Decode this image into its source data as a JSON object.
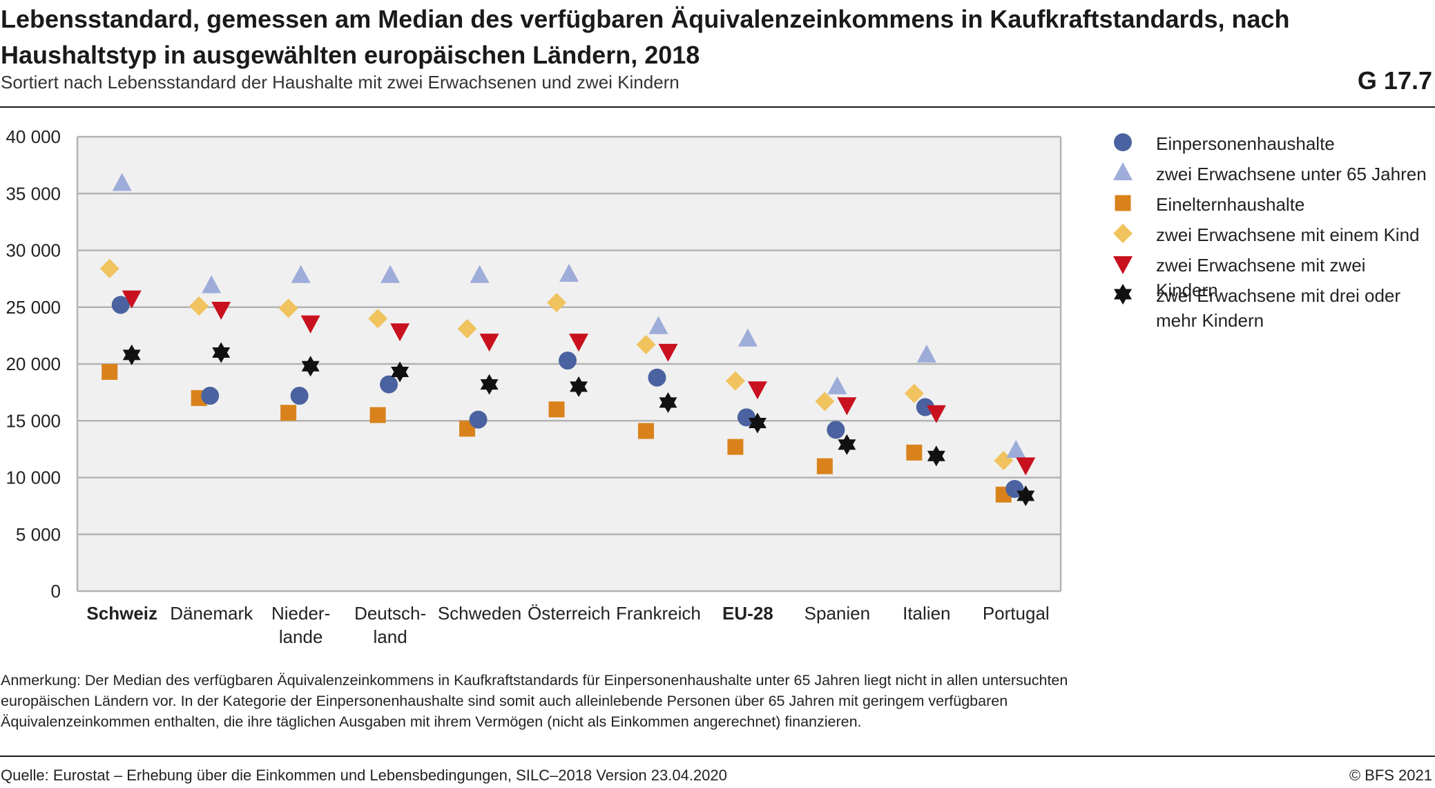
{
  "header": {
    "title": "Lebensstandard, gemessen am Median des verfügbaren Äquivalenzeinkommens in Kaufkraftstandards, nach Haushaltstyp in ausgewählten europäischen Ländern, 2018",
    "subtitle": "Sortiert nach Lebensstandard der Haushalte mit zwei Erwachsenen und zwei Kindern",
    "figure_number": "G 17.7"
  },
  "footer": {
    "note": "Anmerkung: Der Median des verfügbaren Äquivalenzeinkommens in Kaufkraftstandards für Einpersonenhaushalte unter 65 Jahren liegt nicht in allen untersuchten europäischen Ländern vor. In der Kategorie der Einpersonenhaushalte sind somit auch alleinlebende Personen über 65 Jahren mit geringem verfügbaren Äquivalenzeinkommen enthalten, die ihre täglichen Ausgaben mit ihrem Vermögen (nicht als Einkommen angerechnet) finanzieren.",
    "source": "Quelle: Eurostat – Erhebung über die Einkommen und Lebensbedingungen, SILC–2018 Version 23.04.2020",
    "copyright": "© BFS 2021"
  },
  "chart_data": {
    "type": "scatter",
    "categories": [
      "Schweiz",
      "Dänemark",
      "Nieder-\nlande",
      "Deutsch-\nland",
      "Schweden",
      "Österreich",
      "Frankreich",
      "EU-28",
      "Spanien",
      "Italien",
      "Portugal"
    ],
    "bold_categories": [
      "Schweiz",
      "EU-28"
    ],
    "ylim": [
      0,
      40000
    ],
    "yticks": [
      0,
      5000,
      10000,
      15000,
      20000,
      25000,
      30000,
      35000,
      40000
    ],
    "ytick_labels": [
      "0",
      "5 000",
      "10 000",
      "15 000",
      "20 000",
      "25 000",
      "30 000",
      "35 000",
      "40 000"
    ],
    "grid": "horizontal",
    "legend_position": "right",
    "series": [
      {
        "name": "Einpersonenhaushalte",
        "marker": "circle",
        "color": "#4b62a0",
        "values": [
          25200,
          17200,
          17200,
          18200,
          15100,
          20300,
          18800,
          15300,
          14200,
          16200,
          9000
        ]
      },
      {
        "name": "zwei Erwachsene unter 65 Jahren",
        "marker": "triangle-up",
        "color": "#9eacd9",
        "values": [
          35900,
          26900,
          27800,
          27800,
          27800,
          27900,
          23300,
          22200,
          18000,
          20800,
          12400
        ]
      },
      {
        "name": "Eineltern­haushalte",
        "marker": "square",
        "color": "#d9821b",
        "values": [
          19300,
          17000,
          15700,
          15500,
          14300,
          16000,
          14100,
          12700,
          11000,
          12200,
          8500
        ]
      },
      {
        "name": "zwei Erwachsene mit einem Kind",
        "marker": "diamond",
        "color": "#f0c35e",
        "values": [
          28400,
          25100,
          24900,
          24000,
          23100,
          25400,
          21700,
          18500,
          16700,
          17400,
          11500
        ]
      },
      {
        "name": "zwei Erwachsene mit zwei Kindern",
        "marker": "triangle-down",
        "color": "#c8101e",
        "values": [
          25800,
          24800,
          23600,
          22900,
          22000,
          22000,
          21100,
          17800,
          16400,
          15700,
          11100
        ]
      },
      {
        "name": "zwei Erwachsene mit drei oder mehr Kindern",
        "marker": "star6",
        "color": "#111111",
        "values": [
          20800,
          21000,
          19800,
          19300,
          18200,
          18000,
          16600,
          14800,
          12900,
          11900,
          8400
        ]
      }
    ]
  },
  "legend": {
    "items": [
      {
        "marker": "circle",
        "color": "#4b62a0",
        "label": "Einpersonenhaushalte"
      },
      {
        "marker": "triangle-up",
        "color": "#9eacd9",
        "label": "zwei Erwachsene unter 65 Jahren"
      },
      {
        "marker": "square",
        "color": "#d9821b",
        "label": "Eineltern­haushalte"
      },
      {
        "marker": "diamond",
        "color": "#f0c35e",
        "label": "zwei Erwachsene mit einem Kind"
      },
      {
        "marker": "triangle-down",
        "color": "#c8101e",
        "label": "zwei Erwachsene mit zwei Kindern"
      },
      {
        "marker": "star6",
        "color": "#111111",
        "label": "zwei Erwachsene mit drei oder mehr Kindern"
      }
    ]
  }
}
